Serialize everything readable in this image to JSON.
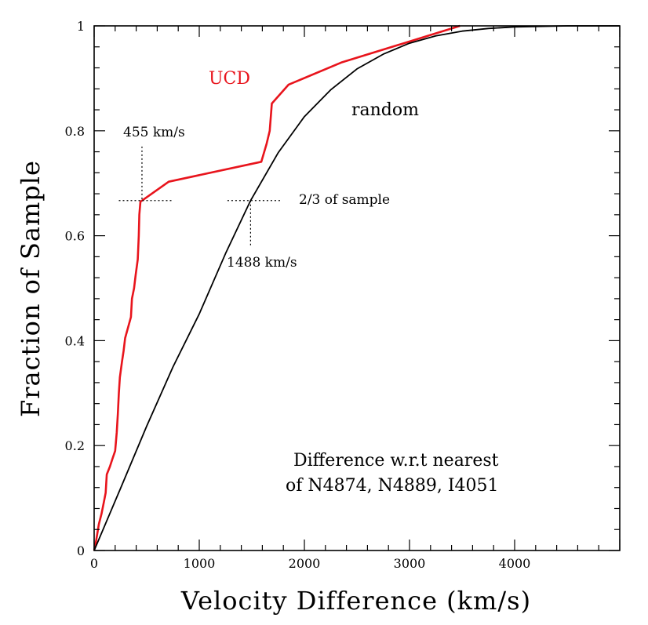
{
  "chart_data": {
    "type": "line",
    "title": "",
    "xlabel": "Velocity Difference (km/s)",
    "ylabel": "Fraction of Sample",
    "xlim": [
      0,
      5000
    ],
    "ylim": [
      0,
      1
    ],
    "x_ticks": [
      0,
      1000,
      2000,
      3000,
      4000
    ],
    "y_ticks": [
      0,
      0.2,
      0.4,
      0.6,
      0.8,
      1
    ],
    "x_tick_labels": [
      "0",
      "1000",
      "2000",
      "3000",
      "4000"
    ],
    "y_tick_labels": [
      "0",
      "0.2",
      "0.4",
      "0.6",
      "0.8",
      "1"
    ],
    "series": [
      {
        "name": "UCD",
        "color": "#e8141c",
        "points": [
          [
            0,
            0
          ],
          [
            20,
            0.02
          ],
          [
            45,
            0.05
          ],
          [
            70,
            0.07
          ],
          [
            90,
            0.09
          ],
          [
            110,
            0.11
          ],
          [
            120,
            0.145
          ],
          [
            150,
            0.16
          ],
          [
            175,
            0.175
          ],
          [
            200,
            0.19
          ],
          [
            215,
            0.225
          ],
          [
            225,
            0.26
          ],
          [
            235,
            0.3
          ],
          [
            245,
            0.33
          ],
          [
            265,
            0.36
          ],
          [
            280,
            0.38
          ],
          [
            295,
            0.405
          ],
          [
            350,
            0.445
          ],
          [
            360,
            0.48
          ],
          [
            380,
            0.5
          ],
          [
            395,
            0.525
          ],
          [
            415,
            0.555
          ],
          [
            425,
            0.6
          ],
          [
            430,
            0.64
          ],
          [
            440,
            0.665
          ],
          [
            455,
            0.667
          ],
          [
            710,
            0.703
          ],
          [
            1590,
            0.741
          ],
          [
            1640,
            0.775
          ],
          [
            1670,
            0.8
          ],
          [
            1690,
            0.852
          ],
          [
            1850,
            0.888
          ],
          [
            2350,
            0.93
          ],
          [
            3480,
            1.0
          ]
        ]
      },
      {
        "name": "random",
        "color": "#000000",
        "points": [
          [
            0,
            0
          ],
          [
            250,
            0.118
          ],
          [
            500,
            0.237
          ],
          [
            750,
            0.35
          ],
          [
            1000,
            0.451
          ],
          [
            1250,
            0.566
          ],
          [
            1488,
            0.667
          ],
          [
            1750,
            0.758
          ],
          [
            2000,
            0.827
          ],
          [
            2250,
            0.878
          ],
          [
            2500,
            0.918
          ],
          [
            2750,
            0.946
          ],
          [
            3000,
            0.967
          ],
          [
            3250,
            0.981
          ],
          [
            3500,
            0.99
          ],
          [
            3750,
            0.995
          ],
          [
            4000,
            0.998
          ],
          [
            4500,
            1.0
          ],
          [
            5000,
            1.0
          ]
        ]
      }
    ],
    "markers": [
      {
        "name": "ucd-median",
        "x": 455,
        "y": 0.667,
        "label": "455 km/s"
      },
      {
        "name": "random-median",
        "x": 1488,
        "y": 0.667,
        "label": "1488 km/s"
      }
    ],
    "annotations": {
      "ucd_label": "UCD",
      "random_label": "random",
      "fraction_label": "2/3 of sample",
      "note_line1": "Difference w.r.t nearest",
      "note_line2": "of N4874, N4889, I4051"
    }
  }
}
